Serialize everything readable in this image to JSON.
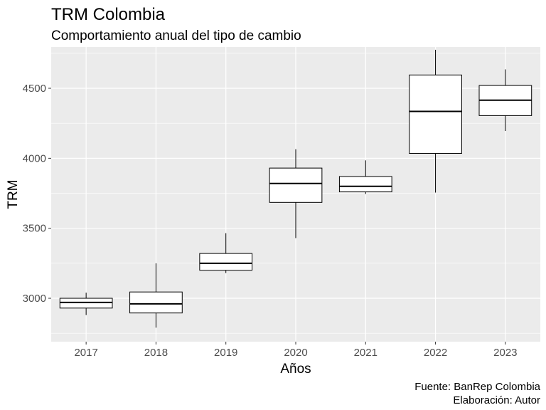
{
  "chart_data": {
    "type": "boxplot",
    "title": "TRM Colombia",
    "subtitle": "Comportamiento anual del tipo de cambio",
    "xlabel": "Años",
    "ylabel": "TRM",
    "caption": [
      "Fuente: BanRep Colombia",
      "Elaboración: Autor"
    ],
    "categories": [
      "2017",
      "2018",
      "2019",
      "2020",
      "2021",
      "2022",
      "2023"
    ],
    "ylim": [
      2690,
      4795
    ],
    "yticks": [
      3000,
      3500,
      4000,
      4500
    ],
    "grid": true,
    "legend": "none",
    "boxes": [
      {
        "category": "2017",
        "min": 2880,
        "q1": 2930,
        "median": 2970,
        "q3": 3000,
        "max": 3040
      },
      {
        "category": "2018",
        "min": 2790,
        "q1": 2895,
        "median": 2960,
        "q3": 3045,
        "max": 3250
      },
      {
        "category": "2019",
        "min": 3180,
        "q1": 3200,
        "median": 3250,
        "q3": 3320,
        "max": 3465
      },
      {
        "category": "2020",
        "min": 3430,
        "q1": 3685,
        "median": 3820,
        "q3": 3930,
        "max": 4065
      },
      {
        "category": "2021",
        "min": 3745,
        "q1": 3760,
        "median": 3800,
        "q3": 3870,
        "max": 3985
      },
      {
        "category": "2022",
        "min": 3755,
        "q1": 4035,
        "median": 4335,
        "q3": 4595,
        "max": 4775
      },
      {
        "category": "2023",
        "min": 4195,
        "q1": 4305,
        "median": 4415,
        "q3": 4520,
        "max": 4635
      }
    ],
    "colors": {
      "panel": "#EBEBEB",
      "grid_major": "#FFFFFF",
      "box_fill": "#FFFFFF",
      "box_stroke": "#000000"
    }
  }
}
